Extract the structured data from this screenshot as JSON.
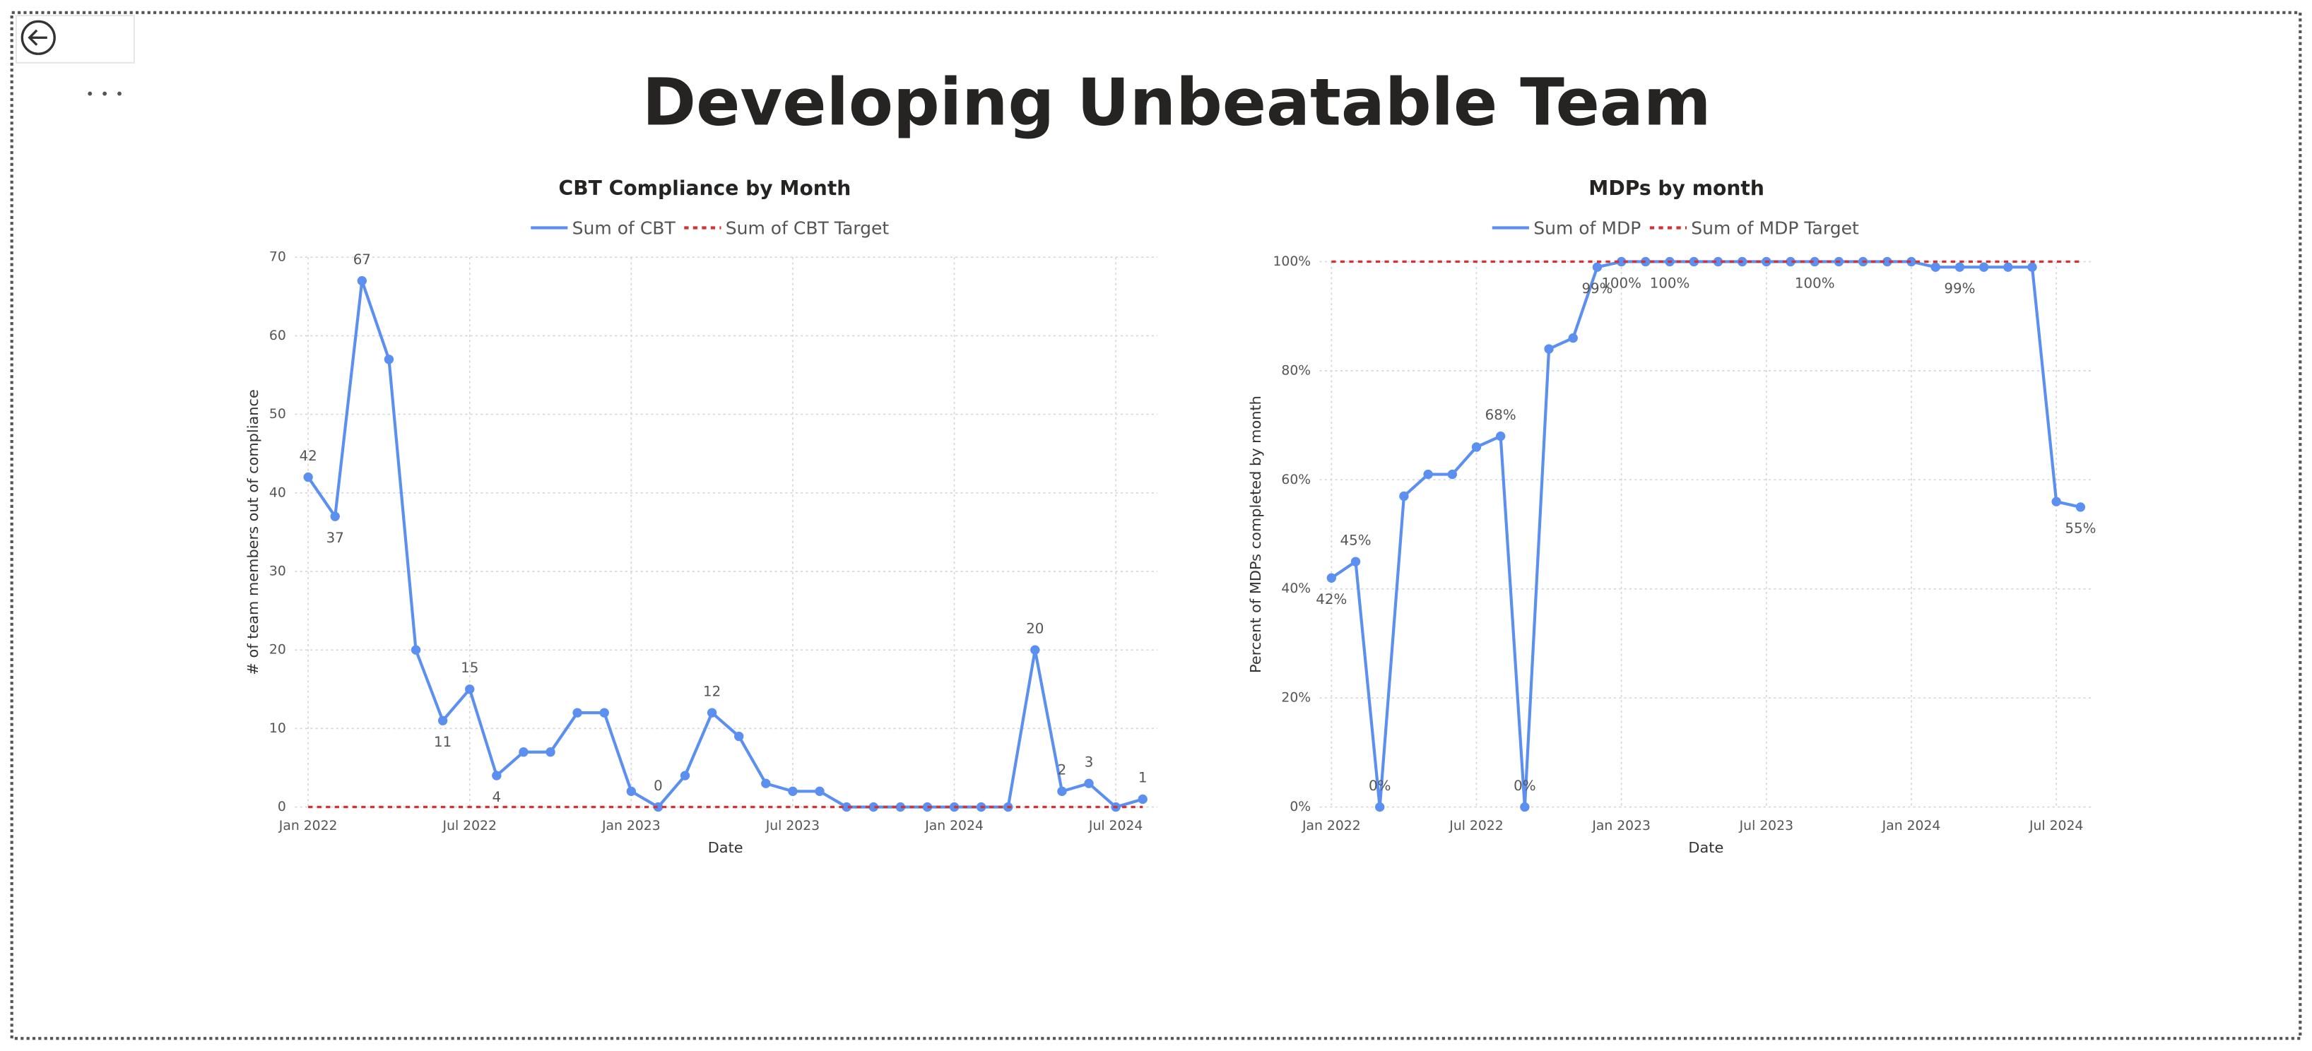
{
  "title": "Developing Unbeatable Team",
  "chart_data": [
    {
      "type": "line",
      "title": "CBT Compliance by Month",
      "x_label": "Date",
      "y_label": "# of team members out of compliance",
      "x": [
        "2022-01",
        "2022-02",
        "2022-03",
        "2022-04",
        "2022-05",
        "2022-06",
        "2022-07",
        "2022-08",
        "2022-09",
        "2022-10",
        "2022-11",
        "2022-12",
        "2023-01",
        "2023-02",
        "2023-03",
        "2023-04",
        "2023-05",
        "2023-06",
        "2023-07",
        "2023-08",
        "2023-09",
        "2023-10",
        "2023-11",
        "2023-12",
        "2024-01",
        "2024-02",
        "2024-03",
        "2024-04",
        "2024-05",
        "2024-06",
        "2024-07",
        "2024-08"
      ],
      "xlim": [
        "2022-01",
        "2024-08"
      ],
      "xticks": [
        {
          "value": "2022-01",
          "label": "Jan 2022"
        },
        {
          "value": "2022-07",
          "label": "Jul 2022"
        },
        {
          "value": "2023-01",
          "label": "Jan 2023"
        },
        {
          "value": "2023-07",
          "label": "Jul 2023"
        },
        {
          "value": "2024-01",
          "label": "Jan 2024"
        },
        {
          "value": "2024-07",
          "label": "Jul 2024"
        }
      ],
      "ylim": [
        0,
        70
      ],
      "yticks": [
        0,
        10,
        20,
        30,
        40,
        50,
        60,
        70
      ],
      "grid": true,
      "series": [
        {
          "name": "Sum of CBT",
          "color": "#5b8ff0",
          "style": "solid",
          "markers": true,
          "values": [
            42,
            37,
            67,
            57,
            20,
            11,
            15,
            4,
            7,
            7,
            12,
            12,
            2,
            0,
            4,
            12,
            9,
            3,
            2,
            2,
            0,
            0,
            0,
            0,
            0,
            0,
            0,
            20,
            2,
            3,
            0,
            1
          ],
          "value_labels": [
            "42",
            "37",
            "67",
            null,
            null,
            "11",
            "15",
            "4",
            null,
            null,
            null,
            null,
            null,
            "0",
            null,
            "12",
            null,
            null,
            null,
            null,
            null,
            null,
            null,
            null,
            null,
            null,
            null,
            "20",
            "2",
            "3",
            null,
            "1"
          ]
        },
        {
          "name": "Sum of CBT Target",
          "color": "#d13438",
          "style": "dashed",
          "markers": false,
          "values": [
            0,
            0,
            0,
            0,
            0,
            0,
            0,
            0,
            0,
            0,
            0,
            0,
            0,
            0,
            0,
            0,
            0,
            0,
            0,
            0,
            0,
            0,
            0,
            0,
            0,
            0,
            0,
            0,
            0,
            0,
            0,
            0
          ]
        }
      ]
    },
    {
      "type": "line",
      "title": "MDPs by month",
      "x_label": "Date",
      "y_label": "Percent of MDPs completed by month",
      "x": [
        "2022-01",
        "2022-02",
        "2022-03",
        "2022-04",
        "2022-05",
        "2022-06",
        "2022-07",
        "2022-08",
        "2022-09",
        "2022-10",
        "2022-11",
        "2022-12",
        "2023-01",
        "2023-02",
        "2023-03",
        "2023-04",
        "2023-05",
        "2023-06",
        "2023-07",
        "2023-08",
        "2023-09",
        "2023-10",
        "2023-11",
        "2023-12",
        "2024-01",
        "2024-02",
        "2024-03",
        "2024-04",
        "2024-05",
        "2024-06",
        "2024-07",
        "2024-08"
      ],
      "xlim": [
        "2022-01",
        "2024-08"
      ],
      "xticks": [
        {
          "value": "2022-01",
          "label": "Jan 2022"
        },
        {
          "value": "2022-07",
          "label": "Jul 2022"
        },
        {
          "value": "2023-01",
          "label": "Jan 2023"
        },
        {
          "value": "2023-07",
          "label": "Jul 2023"
        },
        {
          "value": "2024-01",
          "label": "Jan 2024"
        },
        {
          "value": "2024-07",
          "label": "Jul 2024"
        }
      ],
      "ylim": [
        0,
        100
      ],
      "yticks": [
        {
          "value": 0,
          "label": "0%"
        },
        {
          "value": 20,
          "label": "20%"
        },
        {
          "value": 40,
          "label": "40%"
        },
        {
          "value": 60,
          "label": "60%"
        },
        {
          "value": 80,
          "label": "80%"
        },
        {
          "value": 100,
          "label": "100%"
        }
      ],
      "grid": true,
      "series": [
        {
          "name": "Sum of MDP",
          "color": "#5b8ff0",
          "style": "solid",
          "markers": true,
          "values": [
            42,
            45,
            0,
            57,
            61,
            61,
            66,
            68,
            0,
            84,
            86,
            99,
            100,
            100,
            100,
            100,
            100,
            100,
            100,
            100,
            100,
            100,
            100,
            100,
            100,
            99,
            99,
            99,
            99,
            99,
            56,
            55
          ],
          "value_labels": [
            "42%",
            "45%",
            "0%",
            null,
            null,
            null,
            null,
            "68%",
            "0%",
            null,
            null,
            "99%",
            "100%",
            null,
            "100%",
            null,
            null,
            null,
            null,
            null,
            "100%",
            null,
            null,
            null,
            null,
            null,
            "99%",
            null,
            null,
            null,
            null,
            "55%"
          ]
        },
        {
          "name": "Sum of MDP Target",
          "color": "#d13438",
          "style": "dashed",
          "markers": false,
          "values": [
            100,
            100,
            100,
            100,
            100,
            100,
            100,
            100,
            100,
            100,
            100,
            100,
            100,
            100,
            100,
            100,
            100,
            100,
            100,
            100,
            100,
            100,
            100,
            100,
            100,
            100,
            100,
            100,
            100,
            100,
            100,
            100
          ]
        }
      ]
    }
  ]
}
